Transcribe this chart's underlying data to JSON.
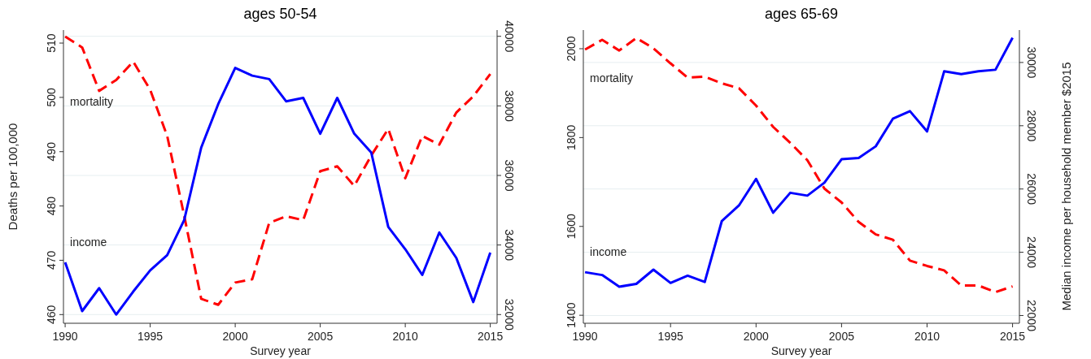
{
  "chart_data": [
    {
      "type": "line",
      "title": "ages 50-54",
      "xlabel": "Survey year",
      "ylabel": "Deaths per 100,000",
      "x": [
        1990,
        1991,
        1992,
        1993,
        1994,
        1995,
        1996,
        1997,
        1998,
        1999,
        2000,
        2001,
        2002,
        2003,
        2004,
        2005,
        2006,
        2007,
        2008,
        2009,
        2010,
        2011,
        2012,
        2013,
        2014,
        2015
      ],
      "series": [
        {
          "name": "mortality",
          "color": "#ff0000",
          "line_style": "dashed",
          "values": [
            511.2,
            509.2,
            501.2,
            503.2,
            506.6,
            501.4,
            492.9,
            478.2,
            462.9,
            461.8,
            465.9,
            466.5,
            476.9,
            478.1,
            477.4,
            486.4,
            487.3,
            483.7,
            489.3,
            494.2,
            485.1,
            492.9,
            491.3,
            497.2,
            500.2,
            504.3
          ]
        },
        {
          "name": "income",
          "color": "#0000ff",
          "line_style": "solid",
          "axis": "y2",
          "values": [
            33500,
            32100,
            32760,
            32000,
            32660,
            33270,
            33710,
            34720,
            36800,
            38050,
            39090,
            38870,
            38770,
            38130,
            38230,
            37200,
            38230,
            37200,
            36660,
            34520,
            33880,
            33140,
            34360,
            33630,
            32360,
            33780
          ]
        }
      ],
      "xlim": [
        1989.9,
        2015.4
      ],
      "xticks": [
        1990,
        1995,
        2000,
        2005,
        2010,
        2015
      ],
      "ylim": [
        458.4,
        512.4
      ],
      "yticks": [
        460,
        470,
        480,
        490,
        500,
        510
      ],
      "y2lim": [
        31750,
        40180
      ],
      "y2ticks": [
        32000,
        34000,
        36000,
        38000,
        40000
      ],
      "grid": "y2",
      "legend": false
    },
    {
      "type": "line",
      "title": "ages 65-69",
      "xlabel": "Survey year",
      "y2label": "Median income per household member $2015",
      "x": [
        1990,
        1991,
        1992,
        1993,
        1994,
        1995,
        1996,
        1997,
        1998,
        1999,
        2000,
        2001,
        2002,
        2003,
        2004,
        2005,
        2006,
        2007,
        2008,
        2009,
        2010,
        2011,
        2012,
        2013,
        2014,
        2015
      ],
      "series": [
        {
          "name": "mortality",
          "color": "#ff0000",
          "line_style": "dashed",
          "values": [
            1998,
            2020,
            1996,
            2024,
            2001,
            1967,
            1935,
            1937,
            1922,
            1911,
            1872,
            1824,
            1788,
            1749,
            1685,
            1654,
            1610,
            1582,
            1570,
            1523,
            1511,
            1501,
            1467,
            1467,
            1452,
            1465
          ]
        },
        {
          "name": "income",
          "color": "#0000ff",
          "line_style": "solid",
          "axis": "y2",
          "values": [
            23370,
            23280,
            22910,
            23000,
            23450,
            23030,
            23260,
            23060,
            24990,
            25480,
            26320,
            25250,
            25880,
            25790,
            26200,
            26940,
            26980,
            27350,
            28220,
            28460,
            27820,
            29720,
            29630,
            29720,
            29770,
            30780
          ]
        }
      ],
      "xlim": [
        1989.9,
        2015.4
      ],
      "xticks": [
        1990,
        1995,
        2000,
        2005,
        2010,
        2015
      ],
      "ylim": [
        1382,
        2042
      ],
      "yticks": [
        1400,
        1600,
        1800,
        2000
      ],
      "y2lim": [
        21755,
        31025
      ],
      "y2ticks": [
        22000,
        24000,
        26000,
        28000,
        30000
      ],
      "grid": "y2",
      "legend": false
    }
  ]
}
